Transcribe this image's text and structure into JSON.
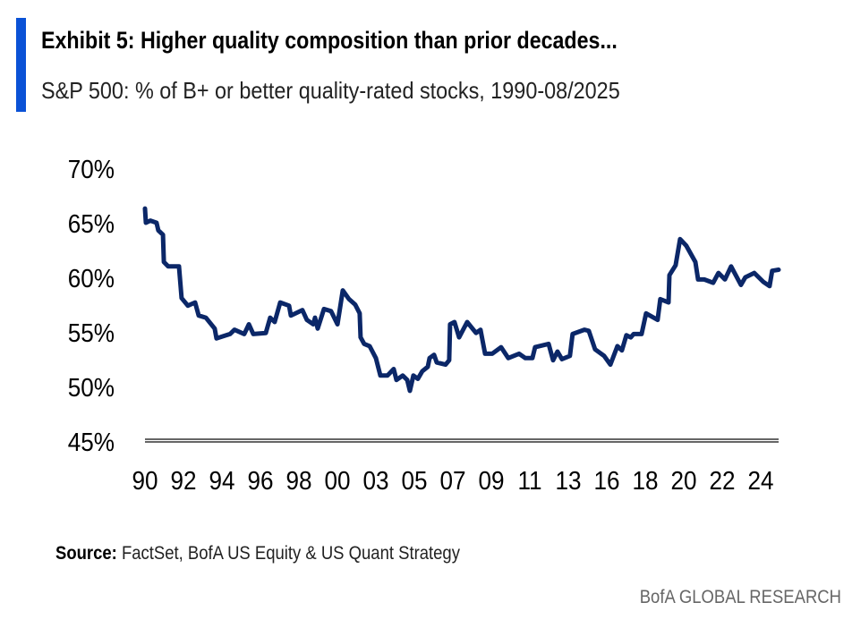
{
  "header": {
    "title": "Exhibit 5: Higher quality composition than prior decades...",
    "subtitle": "S&P 500: % of B+ or better quality-rated stocks, 1990-08/2025",
    "accent_color": "#0a52d6"
  },
  "footer": {
    "source_label": "Source:",
    "source_text": "FactSet, BofA US Equity & US Quant Strategy",
    "brand": "BofA GLOBAL RESEARCH"
  },
  "chart_data": {
    "type": "line",
    "title": "",
    "xlabel": "",
    "ylabel": "",
    "ylim": [
      45,
      70
    ],
    "yticks": [
      "70%",
      "65%",
      "60%",
      "55%",
      "50%",
      "45%"
    ],
    "ytick_values": [
      70,
      65,
      60,
      55,
      50,
      45
    ],
    "xlim": [
      1990,
      2025.67
    ],
    "xticks": [
      "90",
      "92",
      "94",
      "96",
      "98",
      "00",
      "03",
      "05",
      "07",
      "09",
      "11",
      "13",
      "16",
      "18",
      "20",
      "22",
      "24"
    ],
    "grid": false,
    "legend": "none",
    "line_color": "#0b2768",
    "series": [
      {
        "x": [
          1990.05,
          1990.1,
          1990.35,
          1990.7,
          1990.8,
          1991.06,
          1991.11,
          1991.36,
          1991.96,
          1992.11,
          1992.46,
          1992.87,
          1993.07,
          1993.47,
          1993.97,
          1994.07,
          1994.83,
          1995.08,
          1995.63,
          1995.89,
          1996.14,
          1996.84,
          1997.09,
          1997.34,
          1997.65,
          1998.15,
          1998.25,
          1998.9,
          1999.15,
          1999.51,
          1999.61,
          1999.76,
          2000.11,
          2000.51,
          2000.87,
          2001.17,
          2001.52,
          2001.87,
          2002.12,
          2002.17,
          2002.37,
          2002.68,
          2003.03,
          2003.28,
          2003.68,
          2004.03,
          2004.19,
          2004.54,
          2004.79,
          2004.94,
          2005.14,
          2005.39,
          2005.64,
          2005.95,
          2006.05,
          2006.3,
          2006.45,
          2006.95,
          2007.15,
          2007.2,
          2007.45,
          2007.71,
          2008.16,
          2008.66,
          2008.91,
          2009.17,
          2009.57,
          2010.07,
          2010.47,
          2011.08,
          2011.43,
          2011.83,
          2011.98,
          2012.74,
          2012.99,
          2013.24,
          2013.49,
          2013.94,
          2014.09,
          2014.75,
          2015.0,
          2015.35,
          2015.86,
          2016.21,
          2016.61,
          2016.86,
          2017.11,
          2017.36,
          2017.52,
          2017.97,
          2018.22,
          2018.87,
          2019.02,
          2019.48,
          2019.53,
          2019.88,
          2020.13,
          2020.48,
          2020.99,
          2021.14,
          2021.49,
          2021.99,
          2022.29,
          2022.65,
          2023.0,
          2023.55,
          2023.8,
          2024.3,
          2024.8,
          2025.16,
          2025.31,
          2025.67
        ],
        "values": [
          66.3,
          65.0,
          65.2,
          65.0,
          64.3,
          63.9,
          61.4,
          61.0,
          61.0,
          58.1,
          57.4,
          57.7,
          56.5,
          56.3,
          55.3,
          54.4,
          54.8,
          55.2,
          54.8,
          55.7,
          54.8,
          54.9,
          56.3,
          55.9,
          57.7,
          57.4,
          56.5,
          57.0,
          56.1,
          55.7,
          56.3,
          55.3,
          57.1,
          56.9,
          55.7,
          58.8,
          58.0,
          57.5,
          56.7,
          54.5,
          53.9,
          53.7,
          52.6,
          51.0,
          51.0,
          51.6,
          50.6,
          51.0,
          50.6,
          49.6,
          51.0,
          50.7,
          51.4,
          51.8,
          52.6,
          52.9,
          52.2,
          52.0,
          52.4,
          55.7,
          55.9,
          54.5,
          55.9,
          54.9,
          55.2,
          53.0,
          53.0,
          53.6,
          52.6,
          53.0,
          52.6,
          52.6,
          53.6,
          53.9,
          52.4,
          53.2,
          52.5,
          52.8,
          54.8,
          55.2,
          55.1,
          53.4,
          52.8,
          52.0,
          53.7,
          53.3,
          54.7,
          54.5,
          54.8,
          54.8,
          56.7,
          56.1,
          58.0,
          57.7,
          60.2,
          61.1,
          63.5,
          62.9,
          61.4,
          59.8,
          59.8,
          59.5,
          60.4,
          59.8,
          61.0,
          59.3,
          60.0,
          60.4,
          59.6,
          59.2,
          60.6,
          60.7
        ]
      }
    ]
  }
}
